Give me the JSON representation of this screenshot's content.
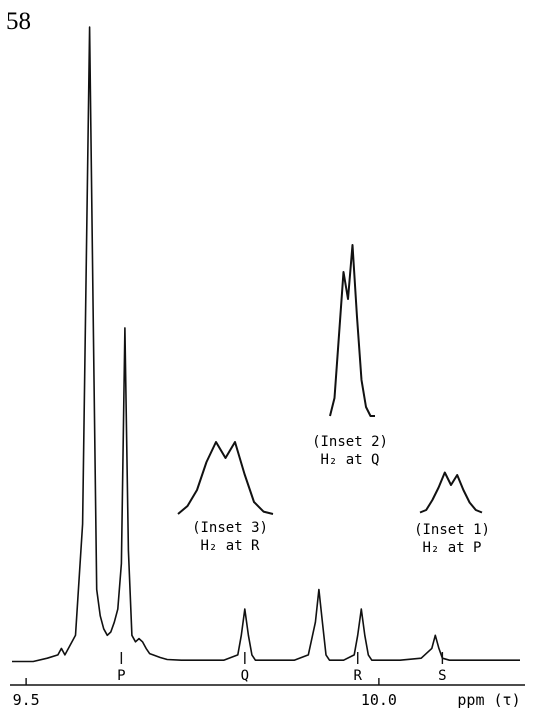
{
  "page_number": "58",
  "chart_data": {
    "type": "line",
    "title": "",
    "xlabel": "ppm (τ)",
    "ylabel": "",
    "x_tick_labels": [
      "9.5",
      "10.0"
    ],
    "x_ticks": [
      9.5,
      10.0
    ],
    "xlim": [
      9.48,
      10.2
    ],
    "ylim": [
      0,
      1.0
    ],
    "grid": false,
    "legend": "none",
    "line_color": "#111111",
    "series": [
      {
        "x": [
          9.48,
          9.51,
          9.53,
          9.545,
          9.55,
          9.555,
          9.57,
          9.58,
          9.59,
          9.595,
          9.6,
          9.605,
          9.61,
          9.615,
          9.62,
          9.625,
          9.63,
          9.635,
          9.64,
          9.645,
          9.65,
          9.655,
          9.66,
          9.665,
          9.67,
          9.675,
          9.68,
          9.69,
          9.7,
          9.72,
          9.75,
          9.78,
          9.8,
          9.805,
          9.81,
          9.815,
          9.82,
          9.825,
          9.83,
          9.85,
          9.88,
          9.9,
          9.91,
          9.915,
          9.92,
          9.925,
          9.93,
          9.95,
          9.965,
          9.97,
          9.975,
          9.98,
          9.985,
          9.99,
          10.0,
          10.03,
          10.06,
          10.075,
          10.08,
          10.085,
          10.09,
          10.1,
          10.13,
          10.16,
          10.2
        ],
        "y": [
          0.01,
          0.01,
          0.015,
          0.02,
          0.03,
          0.02,
          0.05,
          0.22,
          0.98,
          0.55,
          0.12,
          0.08,
          0.06,
          0.05,
          0.055,
          0.07,
          0.09,
          0.16,
          0.52,
          0.18,
          0.05,
          0.04,
          0.045,
          0.04,
          0.03,
          0.022,
          0.02,
          0.016,
          0.013,
          0.012,
          0.012,
          0.012,
          0.02,
          0.05,
          0.09,
          0.05,
          0.02,
          0.012,
          0.012,
          0.012,
          0.012,
          0.02,
          0.07,
          0.12,
          0.07,
          0.02,
          0.012,
          0.012,
          0.02,
          0.05,
          0.09,
          0.05,
          0.02,
          0.012,
          0.012,
          0.012,
          0.015,
          0.03,
          0.05,
          0.03,
          0.015,
          0.012,
          0.012,
          0.012,
          0.012
        ]
      }
    ],
    "markers": [
      {
        "label": "P",
        "x": 9.635
      },
      {
        "label": "Q",
        "x": 9.81
      },
      {
        "label": "R",
        "x": 9.97
      },
      {
        "label": "S",
        "x": 10.09
      }
    ],
    "insets": [
      {
        "label": "(Inset 1)",
        "sublabel": "H₂ at P",
        "x": [
          0,
          0.1,
          0.2,
          0.3,
          0.4,
          0.5,
          0.6,
          0.7,
          0.8,
          0.9,
          1.0
        ],
        "y": [
          0.05,
          0.1,
          0.3,
          0.55,
          0.85,
          0.6,
          0.8,
          0.5,
          0.25,
          0.1,
          0.05
        ]
      },
      {
        "label": "(Inset 2)",
        "sublabel": "H₂ at Q",
        "x": [
          0,
          0.1,
          0.2,
          0.3,
          0.4,
          0.5,
          0.6,
          0.7,
          0.8,
          0.9,
          1.0
        ],
        "y": [
          0.05,
          0.15,
          0.5,
          0.85,
          0.7,
          1.0,
          0.6,
          0.25,
          0.1,
          0.05,
          0.05
        ]
      },
      {
        "label": "(Inset 3)",
        "sublabel": "H₂ at R",
        "x": [
          0,
          0.1,
          0.2,
          0.3,
          0.4,
          0.5,
          0.6,
          0.7,
          0.8,
          0.9,
          1.0
        ],
        "y": [
          0.05,
          0.15,
          0.35,
          0.7,
          0.95,
          0.75,
          0.95,
          0.55,
          0.2,
          0.08,
          0.05
        ]
      }
    ]
  }
}
